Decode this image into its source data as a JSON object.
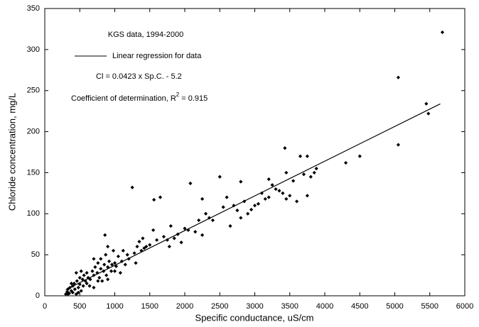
{
  "chart_data": {
    "type": "scatter",
    "xlabel": "Specific conductance, uS/cm",
    "ylabel": "Chloride concentration, mg/L",
    "xlim": [
      0,
      6000
    ],
    "ylim": [
      0,
      350
    ],
    "xticks": [
      0,
      500,
      1000,
      1500,
      2000,
      2500,
      3000,
      3500,
      4000,
      4500,
      5000,
      5500,
      6000
    ],
    "yticks": [
      0,
      50,
      100,
      150,
      200,
      250,
      300,
      350
    ],
    "annotations": {
      "source": "KGS data, 1994-2000",
      "equation": "Cl = 0.0423 x Sp.C. - 5.2",
      "r2_text": "Coefficient of determination, R",
      "r2_sup": "2",
      "r2_value": " = 0.915"
    },
    "series": [
      {
        "mode": "markers",
        "color": "#000000",
        "x": [
          300,
          320,
          330,
          330,
          350,
          360,
          380,
          380,
          400,
          400,
          420,
          430,
          450,
          450,
          460,
          480,
          480,
          500,
          500,
          520,
          520,
          540,
          550,
          560,
          580,
          600,
          600,
          620,
          640,
          650,
          680,
          700,
          700,
          700,
          720,
          750,
          760,
          760,
          780,
          800,
          800,
          820,
          840,
          850,
          860,
          870,
          880,
          900,
          900,
          900,
          920,
          950,
          960,
          980,
          1000,
          1000,
          1020,
          1050,
          1080,
          1100,
          1120,
          1150,
          1180,
          1200,
          1250,
          1280,
          1300,
          1320,
          1350,
          1380,
          1400,
          1420,
          1450,
          1500,
          1550,
          1560,
          1600,
          1650,
          1700,
          1750,
          1780,
          1800,
          1850,
          1900,
          1950,
          2000,
          2050,
          2080,
          2150,
          2200,
          2250,
          2250,
          2300,
          2350,
          2400,
          2500,
          2550,
          2600,
          2650,
          2700,
          2750,
          2800,
          2800,
          2850,
          2900,
          2950,
          3000,
          3050,
          3100,
          3150,
          3200,
          3200,
          3250,
          3300,
          3350,
          3400,
          3430,
          3450,
          3450,
          3500,
          3550,
          3600,
          3650,
          3700,
          3750,
          3750,
          3800,
          3850,
          3880,
          4300,
          4500,
          5050,
          5050,
          5450,
          5480,
          5680
        ],
        "values": [
          2,
          5,
          8,
          2,
          3,
          10,
          6,
          15,
          12,
          4,
          15,
          8,
          2,
          28,
          18,
          10,
          4,
          14,
          22,
          6,
          30,
          20,
          12,
          25,
          18,
          15,
          28,
          22,
          12,
          20,
          30,
          25,
          10,
          45,
          35,
          28,
          40,
          18,
          22,
          33,
          45,
          18,
          30,
          38,
          74,
          50,
          25,
          35,
          60,
          20,
          42,
          30,
          38,
          55,
          40,
          30,
          36,
          48,
          28,
          42,
          55,
          38,
          50,
          45,
          132,
          52,
          40,
          60,
          66,
          55,
          70,
          58,
          60,
          62,
          80,
          117,
          68,
          120,
          72,
          68,
          60,
          85,
          70,
          75,
          65,
          82,
          80,
          137,
          78,
          92,
          118,
          74,
          100,
          95,
          92,
          145,
          108,
          120,
          85,
          110,
          104,
          139,
          95,
          115,
          100,
          105,
          110,
          112,
          125,
          118,
          142,
          120,
          135,
          130,
          128,
          125,
          180,
          150,
          118,
          122,
          140,
          115,
          170,
          148,
          170,
          122,
          145,
          150,
          155,
          162,
          170,
          266,
          184,
          234,
          222,
          321
        ]
      },
      {
        "mode": "line",
        "name": "Linear regression for data",
        "color": "#000000",
        "x": [
          300,
          5650
        ],
        "values": [
          7.5,
          233.8
        ]
      }
    ]
  }
}
